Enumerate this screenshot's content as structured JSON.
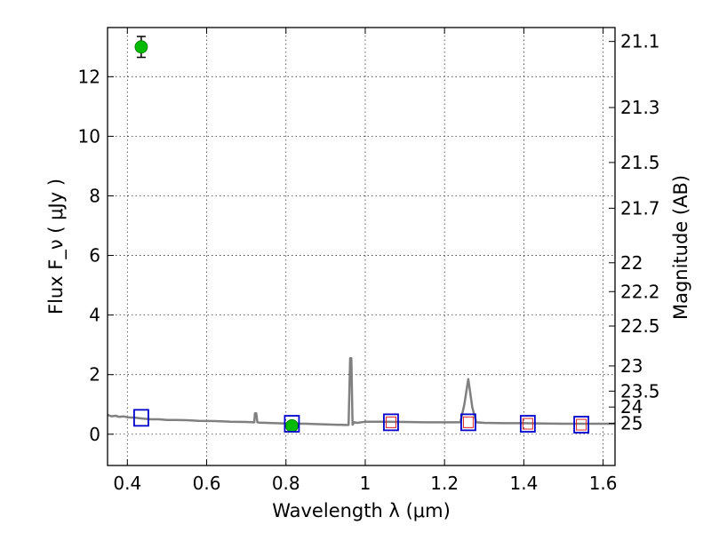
{
  "chart_data": {
    "type": "scatter",
    "xlabel": "Wavelength  λ (μm)",
    "ylabel": "Flux  F_ν  ( μJy )",
    "ylabel_right": "Magnitude (AB)",
    "xlim": [
      0.35,
      1.63
    ],
    "ylim": [
      -1.05,
      13.65
    ],
    "grid": true,
    "x_ticks": [
      0.4,
      0.6,
      0.8,
      1.0,
      1.2,
      1.4,
      1.6
    ],
    "x_tick_labels": [
      "0.4",
      "0.6",
      "0.8",
      "1",
      "1.2",
      "1.4",
      "1.6"
    ],
    "y_ticks": [
      0,
      2,
      4,
      6,
      8,
      10,
      12
    ],
    "y_tick_labels": [
      "0",
      "2",
      "4",
      "6",
      "8",
      "10",
      "12"
    ],
    "mag_ticks": [
      21.1,
      21.3,
      21.5,
      21.7,
      22,
      22.2,
      22.5,
      23,
      23.5,
      24,
      25
    ],
    "mag_tick_labels": [
      "21.1",
      "21.3",
      "21.5",
      "21.7",
      "22",
      "22.2",
      "22.5",
      "23",
      "23.5",
      "24",
      "25"
    ],
    "series": [
      {
        "kind": "line",
        "color": "#808080",
        "x": [
          0.35,
          0.36,
          0.37,
          0.38,
          0.39,
          0.4,
          0.42,
          0.44,
          0.46,
          0.48,
          0.5,
          0.52,
          0.55,
          0.58,
          0.62,
          0.66,
          0.7,
          0.72,
          0.722,
          0.725,
          0.728,
          0.732,
          0.75,
          0.8,
          0.85,
          0.9,
          0.95,
          0.958,
          0.962,
          0.965,
          0.968,
          0.972,
          0.98,
          1.0,
          1.05,
          1.1,
          1.15,
          1.2,
          1.24,
          1.25,
          1.26,
          1.27,
          1.28,
          1.3,
          1.35,
          1.4,
          1.45,
          1.5,
          1.55,
          1.6,
          1.63
        ],
        "y": [
          0.65,
          0.6,
          0.62,
          0.58,
          0.6,
          0.57,
          0.55,
          0.52,
          0.5,
          0.5,
          0.48,
          0.48,
          0.47,
          0.45,
          0.44,
          0.42,
          0.41,
          0.4,
          0.7,
          0.7,
          0.4,
          0.39,
          0.38,
          0.36,
          0.35,
          0.33,
          0.31,
          0.31,
          2.55,
          2.55,
          0.32,
          0.4,
          0.38,
          0.42,
          0.42,
          0.41,
          0.4,
          0.4,
          0.4,
          1.0,
          1.85,
          0.9,
          0.4,
          0.38,
          0.37,
          0.37,
          0.36,
          0.35,
          0.35,
          0.35,
          0.35
        ]
      },
      {
        "kind": "points",
        "name": "green",
        "color": "#00bb00",
        "x": [
          0.435,
          0.815
        ],
        "y": [
          13.0,
          0.28
        ],
        "yerr": [
          0.35,
          0.1
        ]
      },
      {
        "kind": "points",
        "name": "blue-squares",
        "color": "#0000cc",
        "x": [
          0.435,
          0.815,
          1.065,
          1.26,
          1.41,
          1.545
        ],
        "y": [
          0.55,
          0.35,
          0.4,
          0.4,
          0.35,
          0.32
        ]
      },
      {
        "kind": "points",
        "name": "red-squares",
        "color": "#dd2222",
        "x": [
          1.065,
          1.26,
          1.41,
          1.545
        ],
        "y": [
          0.4,
          0.4,
          0.35,
          0.32
        ]
      }
    ]
  }
}
